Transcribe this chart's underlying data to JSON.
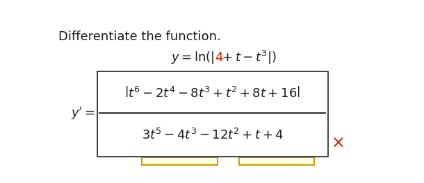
{
  "title": "Differentiate the function.",
  "bg_color": "#ffffff",
  "text_color": "#1a1a1a",
  "red_color": "#cc2200",
  "box_color": "#333333",
  "title_fontsize": 13,
  "math_fontsize": 13,
  "small_box_edge": "#c8a000",
  "small_box_face": "#fffde0"
}
